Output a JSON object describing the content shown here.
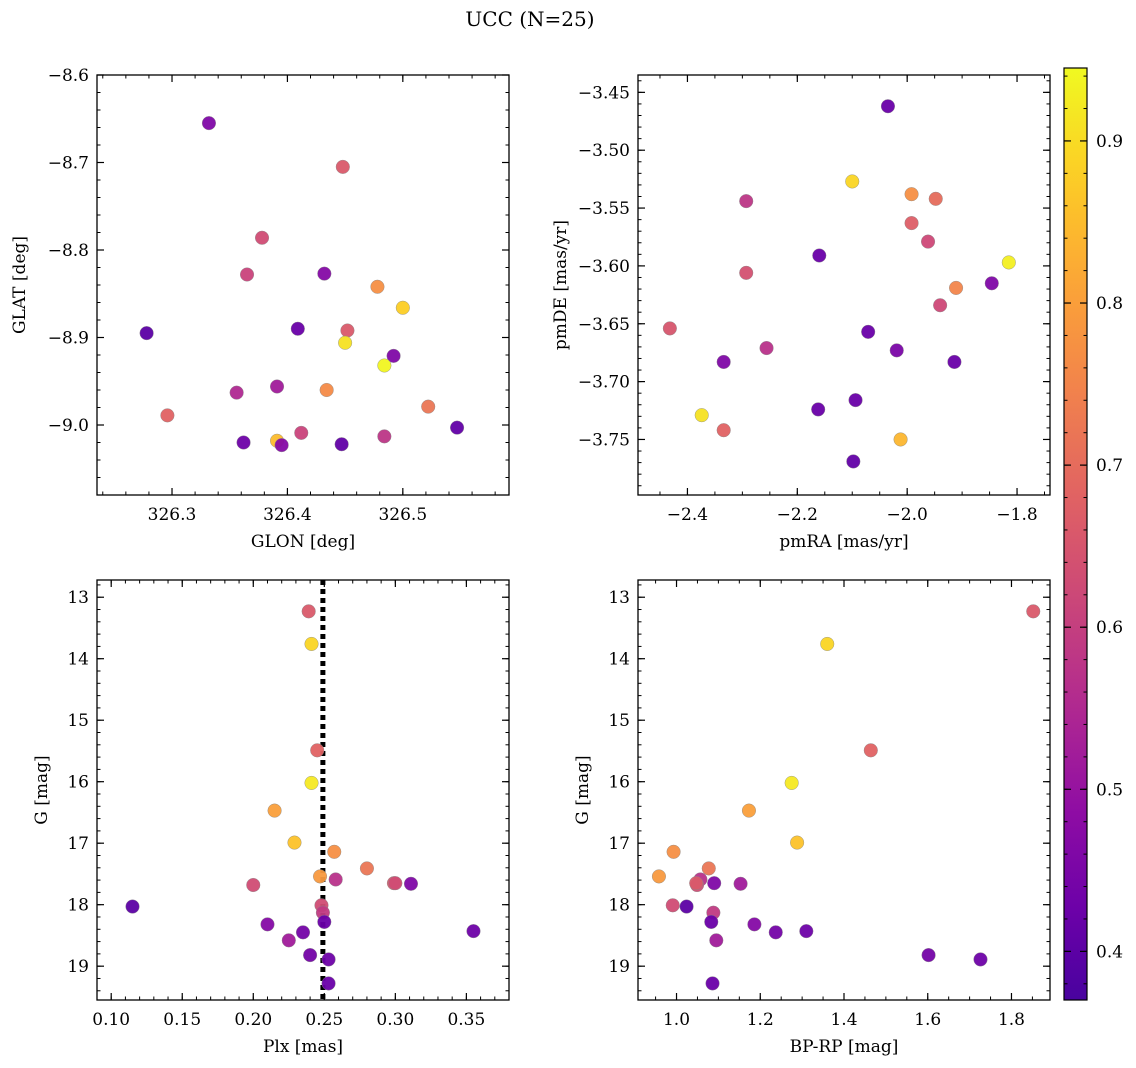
{
  "figure": {
    "title": "UCC (N=25)"
  },
  "colorbar": {
    "colormap": "plasma",
    "range": [
      0.37,
      0.945
    ],
    "ticks": [
      0.4,
      0.5,
      0.6,
      0.7,
      0.8,
      0.9
    ],
    "tick_labels": [
      "0.4",
      "0.5",
      "0.6",
      "0.7",
      "0.8",
      "0.9"
    ]
  },
  "chart_data": [
    {
      "type": "scatter",
      "xlabel": "GLON [deg]",
      "ylabel": "GLAT [deg]",
      "xlim": [
        326.235,
        326.592
      ],
      "ylim": [
        -9.08,
        -8.6
      ],
      "xticks": [
        326.3,
        326.4,
        326.5
      ],
      "xtick_labels": [
        "326.3",
        "326.4",
        "326.5"
      ],
      "yticks": [
        -8.6,
        -8.7,
        -8.8,
        -8.9,
        -9.0
      ],
      "ytick_labels": [
        "−8.6",
        "−8.7",
        "−8.8",
        "−8.9",
        "−9.0"
      ],
      "points": [
        {
          "x": 326.332,
          "y": -8.655,
          "c": 0.46
        },
        {
          "x": 326.448,
          "y": -8.705,
          "c": 0.66
        },
        {
          "x": 326.378,
          "y": -8.786,
          "c": 0.63
        },
        {
          "x": 326.365,
          "y": -8.828,
          "c": 0.61
        },
        {
          "x": 326.432,
          "y": -8.827,
          "c": 0.47
        },
        {
          "x": 326.478,
          "y": -8.842,
          "c": 0.77
        },
        {
          "x": 326.5,
          "y": -8.866,
          "c": 0.88
        },
        {
          "x": 326.278,
          "y": -8.895,
          "c": 0.4
        },
        {
          "x": 326.409,
          "y": -8.89,
          "c": 0.42
        },
        {
          "x": 326.452,
          "y": -8.892,
          "c": 0.66
        },
        {
          "x": 326.45,
          "y": -8.906,
          "c": 0.91
        },
        {
          "x": 326.492,
          "y": -8.921,
          "c": 0.46
        },
        {
          "x": 326.484,
          "y": -8.932,
          "c": 0.94
        },
        {
          "x": 326.356,
          "y": -8.963,
          "c": 0.55
        },
        {
          "x": 326.391,
          "y": -8.956,
          "c": 0.52
        },
        {
          "x": 326.434,
          "y": -8.96,
          "c": 0.76
        },
        {
          "x": 326.296,
          "y": -8.989,
          "c": 0.68
        },
        {
          "x": 326.522,
          "y": -8.979,
          "c": 0.72
        },
        {
          "x": 326.412,
          "y": -9.009,
          "c": 0.61
        },
        {
          "x": 326.547,
          "y": -9.003,
          "c": 0.41
        },
        {
          "x": 326.362,
          "y": -9.02,
          "c": 0.43
        },
        {
          "x": 326.391,
          "y": -9.018,
          "c": 0.85
        },
        {
          "x": 326.395,
          "y": -9.023,
          "c": 0.47
        },
        {
          "x": 326.447,
          "y": -9.022,
          "c": 0.41
        },
        {
          "x": 326.484,
          "y": -9.013,
          "c": 0.58
        }
      ]
    },
    {
      "type": "scatter",
      "xlabel": "pmRA [mas/yr]",
      "ylabel": "pmDE [mas/yr]",
      "xlim": [
        -2.49,
        -1.74
      ],
      "ylim": [
        -3.798,
        -3.435
      ],
      "xticks": [
        -2.4,
        -2.2,
        -2.0,
        -1.8
      ],
      "xtick_labels": [
        "−2.4",
        "−2.2",
        "−2.0",
        "−1.8"
      ],
      "yticks": [
        -3.45,
        -3.5,
        -3.55,
        -3.6,
        -3.65,
        -3.7,
        -3.75
      ],
      "ytick_labels": [
        "−3.45",
        "−3.50",
        "−3.55",
        "−3.60",
        "−3.65",
        "−3.70",
        "−3.75"
      ],
      "points": [
        {
          "x": -2.035,
          "y": -3.462,
          "c": 0.42
        },
        {
          "x": -2.1,
          "y": -3.527,
          "c": 0.89
        },
        {
          "x": -1.992,
          "y": -3.538,
          "c": 0.77
        },
        {
          "x": -1.948,
          "y": -3.542,
          "c": 0.7
        },
        {
          "x": -2.293,
          "y": -3.544,
          "c": 0.58
        },
        {
          "x": -1.992,
          "y": -3.563,
          "c": 0.67
        },
        {
          "x": -1.962,
          "y": -3.579,
          "c": 0.62
        },
        {
          "x": -2.16,
          "y": -3.591,
          "c": 0.42
        },
        {
          "x": -1.815,
          "y": -3.597,
          "c": 0.93
        },
        {
          "x": -2.293,
          "y": -3.606,
          "c": 0.64
        },
        {
          "x": -1.846,
          "y": -3.615,
          "c": 0.46
        },
        {
          "x": -1.911,
          "y": -3.619,
          "c": 0.75
        },
        {
          "x": -1.94,
          "y": -3.634,
          "c": 0.62
        },
        {
          "x": -2.432,
          "y": -3.654,
          "c": 0.65
        },
        {
          "x": -2.071,
          "y": -3.657,
          "c": 0.42
        },
        {
          "x": -2.256,
          "y": -3.671,
          "c": 0.57
        },
        {
          "x": -2.019,
          "y": -3.673,
          "c": 0.45
        },
        {
          "x": -2.334,
          "y": -3.683,
          "c": 0.46
        },
        {
          "x": -1.914,
          "y": -3.683,
          "c": 0.42
        },
        {
          "x": -2.094,
          "y": -3.716,
          "c": 0.42
        },
        {
          "x": -2.162,
          "y": -3.724,
          "c": 0.42
        },
        {
          "x": -2.374,
          "y": -3.729,
          "c": 0.91
        },
        {
          "x": -2.334,
          "y": -3.742,
          "c": 0.68
        },
        {
          "x": -2.012,
          "y": -3.75,
          "c": 0.84
        },
        {
          "x": -2.098,
          "y": -3.769,
          "c": 0.41
        }
      ]
    },
    {
      "type": "scatter",
      "xlabel": "Plx [mas]",
      "ylabel": "G [mag]",
      "xlim": [
        0.09,
        0.38
      ],
      "ylim": [
        19.55,
        12.72
      ],
      "xticks": [
        0.1,
        0.15,
        0.2,
        0.25,
        0.3,
        0.35
      ],
      "xtick_labels": [
        "0.10",
        "0.15",
        "0.20",
        "0.25",
        "0.30",
        "0.35"
      ],
      "yticks": [
        13,
        14,
        15,
        16,
        17,
        18,
        19
      ],
      "ytick_labels": [
        "13",
        "14",
        "15",
        "16",
        "17",
        "18",
        "19"
      ],
      "vline": {
        "x": 0.249,
        "style": "dotted"
      },
      "points": [
        {
          "x": 0.239,
          "y": 13.23,
          "c": 0.66
        },
        {
          "x": 0.241,
          "y": 13.76,
          "c": 0.89
        },
        {
          "x": 0.245,
          "y": 15.49,
          "c": 0.68
        },
        {
          "x": 0.241,
          "y": 16.02,
          "c": 0.92
        },
        {
          "x": 0.215,
          "y": 16.47,
          "c": 0.8
        },
        {
          "x": 0.229,
          "y": 16.99,
          "c": 0.86
        },
        {
          "x": 0.257,
          "y": 17.14,
          "c": 0.77
        },
        {
          "x": 0.28,
          "y": 17.41,
          "c": 0.72
        },
        {
          "x": 0.247,
          "y": 17.54,
          "c": 0.79
        },
        {
          "x": 0.258,
          "y": 17.59,
          "c": 0.57
        },
        {
          "x": 0.2,
          "y": 17.68,
          "c": 0.63
        },
        {
          "x": 0.299,
          "y": 17.65,
          "c": 0.66
        },
        {
          "x": 0.3,
          "y": 17.65,
          "c": 0.63
        },
        {
          "x": 0.311,
          "y": 17.66,
          "c": 0.46
        },
        {
          "x": 0.115,
          "y": 18.03,
          "c": 0.4
        },
        {
          "x": 0.248,
          "y": 18.01,
          "c": 0.63
        },
        {
          "x": 0.249,
          "y": 18.13,
          "c": 0.59
        },
        {
          "x": 0.25,
          "y": 18.28,
          "c": 0.42
        },
        {
          "x": 0.21,
          "y": 18.32,
          "c": 0.47
        },
        {
          "x": 0.235,
          "y": 18.45,
          "c": 0.44
        },
        {
          "x": 0.355,
          "y": 18.43,
          "c": 0.43
        },
        {
          "x": 0.225,
          "y": 18.58,
          "c": 0.52
        },
        {
          "x": 0.24,
          "y": 18.82,
          "c": 0.44
        },
        {
          "x": 0.253,
          "y": 18.89,
          "c": 0.43
        },
        {
          "x": 0.253,
          "y": 19.28,
          "c": 0.42
        }
      ]
    },
    {
      "type": "scatter",
      "xlabel": "BP-RP [mag]",
      "ylabel": "G [mag]",
      "xlim": [
        0.908,
        1.892
      ],
      "ylim": [
        19.55,
        12.72
      ],
      "xticks": [
        1.0,
        1.2,
        1.4,
        1.6,
        1.8
      ],
      "xtick_labels": [
        "1.0",
        "1.2",
        "1.4",
        "1.6",
        "1.8"
      ],
      "yticks": [
        13,
        14,
        15,
        16,
        17,
        18,
        19
      ],
      "ytick_labels": [
        "13",
        "14",
        "15",
        "16",
        "17",
        "18",
        "19"
      ],
      "points": [
        {
          "x": 1.852,
          "y": 13.23,
          "c": 0.66
        },
        {
          "x": 1.36,
          "y": 13.76,
          "c": 0.89
        },
        {
          "x": 1.464,
          "y": 15.49,
          "c": 0.68
        },
        {
          "x": 1.275,
          "y": 16.02,
          "c": 0.92
        },
        {
          "x": 1.173,
          "y": 16.47,
          "c": 0.8
        },
        {
          "x": 1.288,
          "y": 16.99,
          "c": 0.86
        },
        {
          "x": 0.993,
          "y": 17.14,
          "c": 0.77
        },
        {
          "x": 1.077,
          "y": 17.41,
          "c": 0.72
        },
        {
          "x": 0.958,
          "y": 17.54,
          "c": 0.79
        },
        {
          "x": 1.057,
          "y": 17.59,
          "c": 0.57
        },
        {
          "x": 1.049,
          "y": 17.68,
          "c": 0.63
        },
        {
          "x": 1.047,
          "y": 17.65,
          "c": 0.66
        },
        {
          "x": 1.09,
          "y": 17.65,
          "c": 0.46
        },
        {
          "x": 1.153,
          "y": 17.66,
          "c": 0.52
        },
        {
          "x": 0.991,
          "y": 18.01,
          "c": 0.63
        },
        {
          "x": 1.024,
          "y": 18.03,
          "c": 0.4
        },
        {
          "x": 1.088,
          "y": 18.13,
          "c": 0.59
        },
        {
          "x": 1.083,
          "y": 18.28,
          "c": 0.42
        },
        {
          "x": 1.186,
          "y": 18.32,
          "c": 0.47
        },
        {
          "x": 1.237,
          "y": 18.45,
          "c": 0.44
        },
        {
          "x": 1.31,
          "y": 18.43,
          "c": 0.43
        },
        {
          "x": 1.095,
          "y": 18.58,
          "c": 0.52
        },
        {
          "x": 1.602,
          "y": 18.82,
          "c": 0.44
        },
        {
          "x": 1.726,
          "y": 18.89,
          "c": 0.43
        },
        {
          "x": 1.086,
          "y": 19.28,
          "c": 0.42
        }
      ]
    }
  ]
}
